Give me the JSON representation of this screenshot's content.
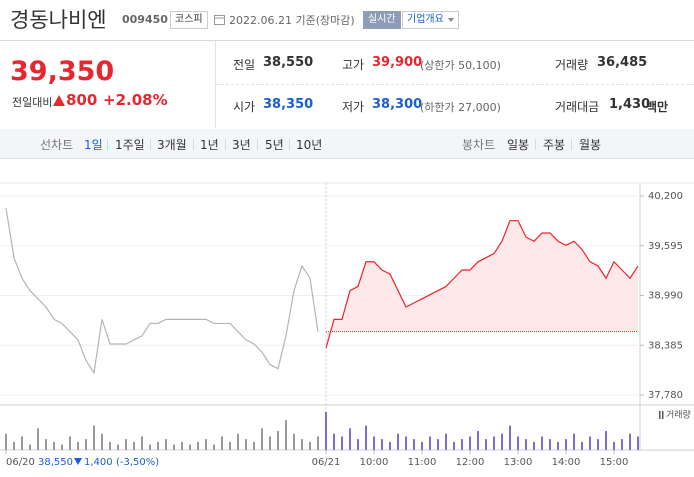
{
  "header": {
    "name": "경동나비엔",
    "code": "009450",
    "market": "코스피",
    "date": "2022.06.21 기준(장마감)",
    "realtime": "실시간",
    "company_info": "기업개요"
  },
  "quote": {
    "price": "39,350",
    "change_label": "전일대비",
    "change": "800",
    "change_rate": "+2.08%"
  },
  "stats": [
    {
      "label": "전일",
      "value": "38,550"
    },
    {
      "label": "고가",
      "value": "39,900",
      "note": "(상한가 50,100)"
    },
    {
      "label": "거래량",
      "value": "36,485"
    },
    {
      "label": "시가",
      "value": "38,350"
    },
    {
      "label": "저가",
      "value": "38,300",
      "note": "(하한가 27,000)"
    },
    {
      "label": "거래대금",
      "value": "1,430",
      "unit": "백만"
    }
  ],
  "tabs": {
    "line_label": "선차트",
    "line": [
      "1일",
      "1주일",
      "3개월",
      "1년",
      "3년",
      "5년",
      "10년"
    ],
    "candle_label": "봉차트",
    "candle": [
      "일봉",
      "주봉",
      "월봉"
    ]
  },
  "chart_data": {
    "type": "line",
    "series": [
      {
        "color": "#b4b4b4",
        "volume_color": "#9a9a9a",
        "values": [
          40050,
          39450,
          39200,
          39050,
          38950,
          38850,
          38700,
          38650,
          38550,
          38450,
          38200,
          38050,
          38700,
          38400,
          38400,
          38400,
          38450,
          38500,
          38650,
          38650,
          38700,
          38700,
          38700,
          38700,
          38700,
          38700,
          38650,
          38650,
          38650,
          38550,
          38450,
          38400,
          38300,
          38150,
          38100,
          38500,
          39050,
          39350,
          39200,
          38550,
          null,
          null,
          null,
          null,
          null,
          null,
          null,
          null,
          null,
          null,
          null,
          null,
          null,
          null,
          null,
          null,
          null,
          null,
          null,
          null,
          null,
          null,
          null,
          null,
          null,
          null,
          null,
          null,
          null,
          null,
          null,
          null,
          null,
          null,
          null,
          null,
          null,
          null,
          null,
          null
        ],
        "volume": [
          6,
          3,
          5,
          2,
          8,
          4,
          3,
          2,
          5,
          3,
          4,
          9,
          6,
          3,
          2,
          4,
          3,
          5,
          2,
          3,
          4,
          2,
          3,
          2,
          3,
          4,
          2,
          5,
          3,
          6,
          4,
          3,
          8,
          5,
          7,
          11,
          6,
          4,
          3,
          5,
          null,
          null,
          null,
          null,
          null,
          null,
          null,
          null,
          null,
          null,
          null,
          null,
          null,
          null,
          null,
          null,
          null,
          null,
          null,
          null,
          null,
          null,
          null,
          null,
          null,
          null,
          null,
          null,
          null,
          null,
          null,
          null,
          null,
          null,
          null,
          null,
          null,
          null,
          null,
          null
        ]
      },
      {
        "color": "#e8262d",
        "fill": "#fde8e9",
        "volume_color": "#7b6fcf",
        "values": [
          null,
          null,
          null,
          null,
          null,
          null,
          null,
          null,
          null,
          null,
          null,
          null,
          null,
          null,
          null,
          null,
          null,
          null,
          null,
          null,
          null,
          null,
          null,
          null,
          null,
          null,
          null,
          null,
          null,
          null,
          null,
          null,
          null,
          null,
          null,
          null,
          null,
          null,
          null,
          null,
          38350,
          38700,
          38700,
          39050,
          39100,
          39400,
          39400,
          39300,
          39250,
          39050,
          38850,
          38900,
          38950,
          39000,
          39050,
          39100,
          39200,
          39300,
          39300,
          39400,
          39450,
          39500,
          39650,
          39900,
          39900,
          39700,
          39650,
          39750,
          39750,
          39650,
          39600,
          39650,
          39550,
          39400,
          39350,
          39200,
          39400,
          39300,
          39200,
          39350
        ],
        "volume": [
          null,
          null,
          null,
          null,
          null,
          null,
          null,
          null,
          null,
          null,
          null,
          null,
          null,
          null,
          null,
          null,
          null,
          null,
          null,
          null,
          null,
          null,
          null,
          null,
          null,
          null,
          null,
          null,
          null,
          null,
          null,
          null,
          null,
          null,
          null,
          null,
          null,
          null,
          null,
          null,
          14,
          6,
          5,
          8,
          4,
          9,
          5,
          4,
          3,
          6,
          5,
          4,
          3,
          5,
          4,
          6,
          3,
          4,
          5,
          7,
          4,
          5,
          6,
          9,
          5,
          4,
          3,
          5,
          4,
          3,
          4,
          6,
          3,
          5,
          4,
          7,
          3,
          4,
          6,
          5
        ]
      }
    ],
    "baseline": 38550,
    "xlim": [
      0,
      79
    ],
    "xticks": [
      {
        "value": 0,
        "label": "06/20"
      },
      {
        "value": 40,
        "label": "06/21"
      },
      {
        "value": 46,
        "label": "10:00"
      },
      {
        "value": 52,
        "label": "11:00"
      },
      {
        "value": 58,
        "label": "12:00"
      },
      {
        "value": 64,
        "label": "13:00"
      },
      {
        "value": 70,
        "label": "14:00"
      },
      {
        "value": 76,
        "label": "15:00"
      }
    ],
    "ylim": [
      37780,
      40200
    ],
    "yticks": [
      {
        "value": 40200,
        "label": "40,200"
      },
      {
        "value": 39595,
        "label": "39,595"
      },
      {
        "value": 38990,
        "label": "38,990"
      },
      {
        "value": 38385,
        "label": "38,385"
      },
      {
        "value": 37780,
        "label": "37,780"
      }
    ],
    "grid": true,
    "volume_label": "거래량",
    "prev_summary": {
      "price": "38,550",
      "change": "1,400",
      "rate": "(-3,50%)"
    }
  }
}
